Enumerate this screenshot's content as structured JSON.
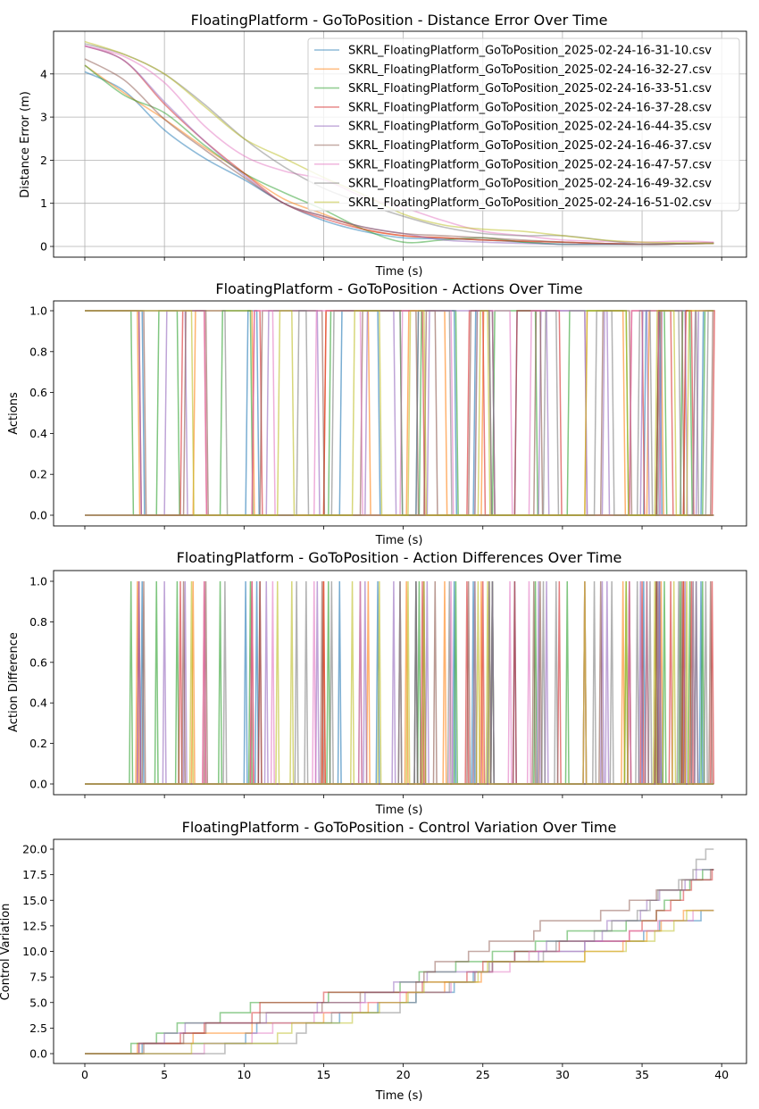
{
  "colors": [
    "#1f77b4",
    "#ff7f0e",
    "#2ca02c",
    "#d62728",
    "#9467bd",
    "#8c564b",
    "#e377c2",
    "#7f7f7f",
    "#bcbd22"
  ],
  "series_names": [
    "SKRL_FloatingPlatform_GoToPosition_2025-02-24-16-31-10.csv",
    "SKRL_FloatingPlatform_GoToPosition_2025-02-24-16-32-27.csv",
    "SKRL_FloatingPlatform_GoToPosition_2025-02-24-16-33-51.csv",
    "SKRL_FloatingPlatform_GoToPosition_2025-02-24-16-37-28.csv",
    "SKRL_FloatingPlatform_GoToPosition_2025-02-24-16-44-35.csv",
    "SKRL_FloatingPlatform_GoToPosition_2025-02-24-16-46-37.csv",
    "SKRL_FloatingPlatform_GoToPosition_2025-02-24-16-47-57.csv",
    "SKRL_FloatingPlatform_GoToPosition_2025-02-24-16-49-32.csv",
    "SKRL_FloatingPlatform_GoToPosition_2025-02-24-16-51-02.csv"
  ],
  "chart_data": [
    {
      "type": "line",
      "title": "FloatingPlatform - GoToPosition - Distance Error Over Time",
      "xlabel": "Time (s)",
      "ylabel": "Distance Error (m)",
      "xlim": [
        -2,
        42
      ],
      "ylim": [
        -0.25,
        4.9
      ],
      "yticks": [
        "0",
        "1",
        "2",
        "3",
        "4"
      ],
      "grid": true,
      "legend": "top-right",
      "x": [
        0,
        2.5,
        5,
        7.5,
        10,
        12.5,
        15,
        17.5,
        20,
        22.5,
        25,
        27.5,
        30,
        32.5,
        35,
        37.5,
        39.5
      ],
      "series": [
        {
          "values": [
            4.05,
            3.6,
            2.7,
            2.05,
            1.55,
            1.0,
            0.6,
            0.35,
            0.2,
            0.18,
            0.15,
            0.1,
            0.05,
            0.05,
            0.05,
            0.06,
            0.08
          ]
        },
        {
          "values": [
            4.2,
            3.55,
            2.95,
            2.3,
            1.7,
            1.1,
            0.75,
            0.4,
            0.25,
            0.2,
            0.15,
            0.12,
            0.1,
            0.07,
            0.05,
            0.06,
            0.07
          ]
        },
        {
          "values": [
            4.2,
            3.5,
            3.1,
            2.35,
            1.7,
            1.25,
            0.85,
            0.4,
            0.1,
            0.15,
            0.2,
            0.1,
            0.05,
            0.05,
            0.05,
            0.07,
            0.08
          ]
        },
        {
          "values": [
            4.65,
            4.3,
            3.3,
            2.45,
            1.7,
            1.0,
            0.65,
            0.4,
            0.25,
            0.2,
            0.15,
            0.12,
            0.1,
            0.07,
            0.05,
            0.07,
            0.08
          ]
        },
        {
          "values": [
            4.65,
            4.3,
            3.35,
            2.45,
            1.65,
            1.0,
            0.7,
            0.45,
            0.3,
            0.15,
            0.1,
            0.07,
            0.05,
            0.05,
            0.05,
            0.06,
            0.07
          ]
        },
        {
          "values": [
            4.35,
            3.85,
            2.95,
            2.25,
            1.6,
            1.0,
            0.7,
            0.45,
            0.3,
            0.25,
            0.2,
            0.15,
            0.1,
            0.07,
            0.05,
            0.06,
            0.07
          ]
        },
        {
          "values": [
            4.65,
            4.4,
            3.8,
            2.8,
            2.1,
            1.75,
            1.55,
            1.15,
            0.9,
            0.6,
            0.35,
            0.25,
            0.15,
            0.12,
            0.1,
            0.12,
            0.1
          ]
        },
        {
          "values": [
            4.7,
            4.45,
            4.0,
            3.3,
            2.5,
            1.85,
            1.35,
            1.0,
            0.7,
            0.45,
            0.3,
            0.25,
            0.25,
            0.15,
            0.05,
            0.06,
            0.07
          ]
        },
        {
          "values": [
            4.75,
            4.45,
            4.0,
            3.25,
            2.5,
            2.05,
            1.6,
            1.2,
            0.75,
            0.5,
            0.4,
            0.35,
            0.25,
            0.15,
            0.1,
            0.08,
            0.07
          ]
        }
      ]
    },
    {
      "type": "line",
      "title": "FloatingPlatform - GoToPosition - Actions Over Time",
      "xlabel": "Time (s)",
      "ylabel": "Actions",
      "ylim": [
        -0.05,
        1.05
      ],
      "yticks": [
        "0.0",
        "0.2",
        "0.4",
        "0.6",
        "0.8",
        "1.0"
      ],
      "note_values": "binary actions toggling 0/1 at each control change time (see chart 4 step times)"
    },
    {
      "type": "line",
      "title": "FloatingPlatform - GoToPosition - Action Differences Over Time",
      "xlabel": "Time (s)",
      "ylabel": "Action Difference",
      "ylim": [
        -0.05,
        1.05
      ],
      "yticks": [
        "0.0",
        "0.2",
        "0.4",
        "0.6",
        "0.8",
        "1.0"
      ]
    },
    {
      "type": "line",
      "title": "FloatingPlatform - GoToPosition - Control Variation Over Time",
      "xlabel": "Time (s)",
      "ylabel": "Control Variation",
      "xlim": [
        -2,
        42
      ],
      "ylim": [
        -1,
        21
      ],
      "xticks": [
        "0",
        "5",
        "10",
        "15",
        "20",
        "25",
        "30",
        "35",
        "40"
      ],
      "yticks": [
        "0.0",
        "2.5",
        "5.0",
        "7.5",
        "10.0",
        "12.5",
        "15.0",
        "17.5",
        "20.0"
      ],
      "x_end": 39.5,
      "series_step_times": [
        [
          3.6,
          10.1,
          10.8,
          16.0,
          18.4,
          20.8,
          23.2,
          24.4,
          25.6,
          27.0,
          31.4,
          35.1,
          36.1,
          38.7
        ],
        [
          3.3,
          6.8,
          10.5,
          15.0,
          17.8,
          20.2,
          22.6,
          24.9,
          25.6,
          31.4,
          33.8,
          35.3,
          36.2,
          37.6
        ],
        [
          2.9,
          4.5,
          5.8,
          8.5,
          10.4,
          15.3,
          19.8,
          21.0,
          23.3,
          25.6,
          28.3,
          30.3,
          34.0,
          35.9,
          36.4,
          37.4,
          38.0,
          38.8
        ],
        [
          3.4,
          6.0,
          7.5,
          10.5,
          11.0,
          15.0,
          21.2,
          24.0,
          25.0,
          27.0,
          29.8,
          34.2,
          35.0,
          35.9,
          36.8,
          37.6,
          38.1,
          39.4
        ],
        [
          3.4,
          5.0,
          6.3,
          11.4,
          14.6,
          17.6,
          19.4,
          21.5,
          25.6,
          28.5,
          29.0,
          32.5,
          32.8,
          34.9,
          35.3,
          36.1,
          37.7,
          38.4
        ],
        [
          3.7,
          6.2,
          7.6,
          11.0,
          14.9,
          17.3,
          20.8,
          21.3,
          22.0,
          24.1,
          25.4,
          28.2,
          28.6,
          32.4,
          34.2,
          35.9,
          37.5,
          39.3
        ],
        [
          7.5,
          10.5,
          11.8,
          14.4,
          17.3,
          19.8,
          23.0,
          24.5,
          26.7,
          27.9,
          31.4,
          34.2,
          36.0,
          38.2
        ],
        [
          8.8,
          13.3,
          13.9,
          15.5,
          19.8,
          20.8,
          22.9,
          24.5,
          25.4,
          28.8,
          29.6,
          32.0,
          33.1,
          34.7,
          35.5,
          36.0,
          37.3,
          38.2,
          38.4,
          39.0
        ],
        [
          6.7,
          12.1,
          13.0,
          16.8,
          18.5,
          20.3,
          21.3,
          24.7,
          25.3,
          31.4,
          34.0,
          35.8,
          37.0,
          37.8
        ]
      ]
    }
  ]
}
